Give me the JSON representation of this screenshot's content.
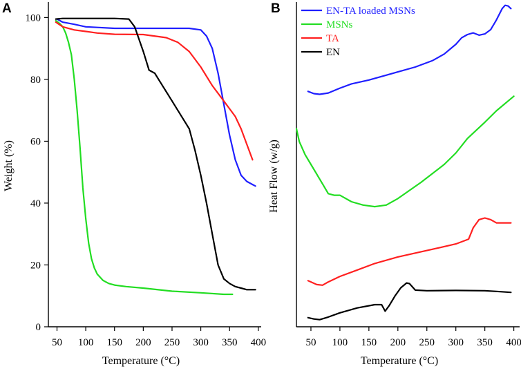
{
  "chart_data": [
    {
      "panel": "A",
      "type": "line",
      "title": "",
      "xlabel": "Temperature (°C)",
      "ylabel": "Weight (%)",
      "xlim": [
        35,
        405
      ],
      "ylim": [
        0,
        105
      ],
      "xticks": [
        50,
        100,
        150,
        200,
        250,
        300,
        350,
        400
      ],
      "yticks": [
        0,
        20,
        40,
        60,
        80,
        100
      ],
      "legend": "none",
      "series": [
        {
          "name": "EN-TA loaded MSNs",
          "color": "#1f1fff",
          "x": [
            50,
            60,
            80,
            100,
            120,
            150,
            200,
            250,
            280,
            300,
            310,
            320,
            330,
            340,
            350,
            360,
            370,
            380,
            390,
            395
          ],
          "y": [
            99.5,
            98.5,
            97.8,
            97,
            96.8,
            96.5,
            96.5,
            96.5,
            96.5,
            96,
            94,
            90,
            82,
            72,
            62,
            54,
            49,
            47,
            46,
            45.5
          ]
        },
        {
          "name": "MSNs",
          "color": "#22dd22",
          "x": [
            48,
            55,
            60,
            65,
            70,
            75,
            80,
            85,
            90,
            95,
            100,
            105,
            110,
            115,
            120,
            130,
            140,
            150,
            170,
            200,
            250,
            300,
            340,
            355
          ],
          "y": [
            99,
            98,
            97,
            95,
            92,
            88,
            80,
            70,
            58,
            45,
            35,
            27,
            22,
            19,
            17,
            15,
            14,
            13.5,
            13,
            12.5,
            11.5,
            11,
            10.5,
            10.5
          ]
        },
        {
          "name": "TA",
          "color": "#ff2020",
          "x": [
            48,
            60,
            80,
            100,
            120,
            150,
            200,
            240,
            260,
            280,
            300,
            320,
            340,
            360,
            370,
            380,
            390
          ],
          "y": [
            98.5,
            97,
            96,
            95.5,
            95,
            94.6,
            94.5,
            93.5,
            92,
            89,
            84,
            78,
            73,
            68,
            64,
            59,
            54
          ]
        },
        {
          "name": "EN",
          "color": "#000000",
          "x": [
            48,
            60,
            100,
            150,
            175,
            185,
            200,
            210,
            220,
            230,
            250,
            270,
            280,
            290,
            300,
            310,
            320,
            330,
            340,
            350,
            360,
            370,
            380,
            395
          ],
          "y": [
            99.5,
            99.7,
            99.7,
            99.7,
            99.5,
            97,
            89,
            83,
            82,
            79,
            73,
            67,
            64,
            57,
            49,
            40,
            30,
            20,
            15.5,
            14,
            13,
            12.5,
            12,
            12
          ]
        }
      ]
    },
    {
      "panel": "B",
      "type": "line",
      "title": "",
      "xlabel": "Temperature (°C)",
      "ylabel": "Heat Flow (w/g)",
      "xlim": [
        25,
        410
      ],
      "ylim": [
        0,
        100
      ],
      "xticks": [
        50,
        100,
        150,
        200,
        250,
        300,
        350,
        400
      ],
      "yticks": [],
      "legend": "top-left",
      "series": [
        {
          "name": "EN-TA loaded MSNs",
          "color": "#1f1fff",
          "x": [
            45,
            55,
            65,
            80,
            100,
            120,
            150,
            180,
            200,
            230,
            260,
            280,
            300,
            310,
            320,
            330,
            340,
            350,
            360,
            370,
            380,
            385,
            390,
            395
          ],
          "y": [
            72.5,
            71.8,
            71.6,
            72,
            73.5,
            74.8,
            76,
            77.5,
            78.5,
            80,
            82,
            84,
            87,
            89,
            90,
            90.5,
            89.8,
            90.2,
            91.5,
            94.5,
            98,
            99,
            98.8,
            98
          ]
        },
        {
          "name": "MSNs",
          "color": "#22dd22",
          "x": [
            25,
            30,
            40,
            50,
            60,
            70,
            80,
            90,
            100,
            120,
            140,
            160,
            180,
            200,
            240,
            280,
            300,
            320,
            350,
            370,
            400
          ],
          "y": [
            61,
            57,
            53,
            50,
            47,
            44,
            41,
            40.5,
            40.5,
            38.5,
            37.5,
            37,
            37.5,
            39.5,
            44.5,
            50,
            53.5,
            58,
            63,
            66.5,
            71
          ]
        },
        {
          "name": "TA",
          "color": "#ff2020",
          "x": [
            45,
            60,
            70,
            80,
            100,
            130,
            160,
            200,
            250,
            300,
            315,
            322,
            330,
            340,
            350,
            360,
            370,
            395
          ],
          "y": [
            14.2,
            13,
            12.8,
            13.8,
            15.5,
            17.5,
            19.5,
            21.5,
            23.5,
            25.5,
            26.5,
            27,
            30.5,
            33,
            33.5,
            33,
            32,
            32
          ]
        },
        {
          "name": "EN",
          "color": "#000000",
          "x": [
            45,
            55,
            65,
            80,
            100,
            130,
            160,
            172,
            178,
            185,
            195,
            205,
            215,
            220,
            230,
            250,
            300,
            350,
            370,
            395
          ],
          "y": [
            2.8,
            2.4,
            2.2,
            3,
            4.3,
            5.8,
            6.8,
            6.8,
            4.8,
            6.5,
            9.5,
            12,
            13.5,
            13.3,
            11.3,
            11.1,
            11.2,
            11.1,
            10.9,
            10.6
          ]
        }
      ]
    }
  ]
}
